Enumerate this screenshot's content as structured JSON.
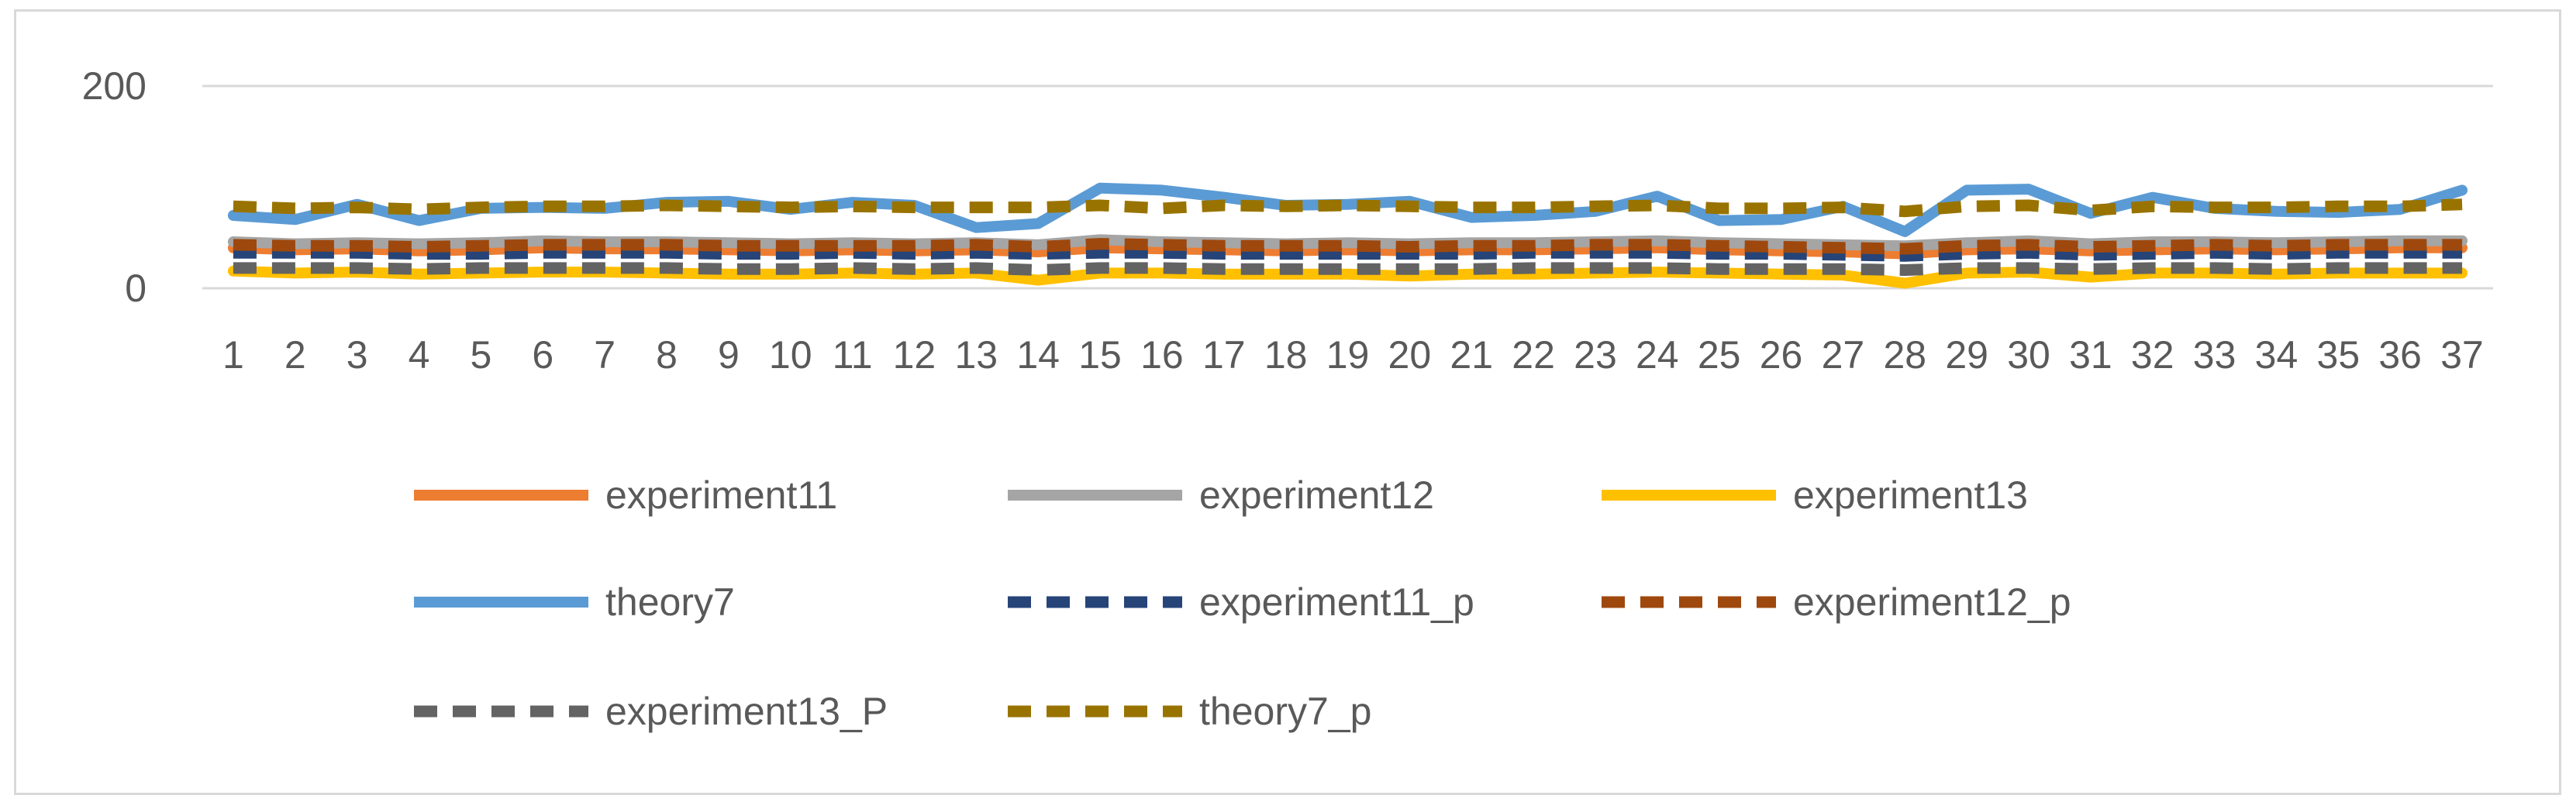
{
  "chart_data": {
    "type": "line",
    "title": "",
    "xlabel": "",
    "ylabel": "",
    "ylim": [
      0,
      200
    ],
    "yticks": [
      0,
      200
    ],
    "grid": true,
    "legend_position": "bottom",
    "categories": [
      "1",
      "2",
      "3",
      "4",
      "5",
      "6",
      "7",
      "8",
      "9",
      "10",
      "11",
      "12",
      "13",
      "14",
      "15",
      "16",
      "17",
      "18",
      "19",
      "20",
      "21",
      "22",
      "23",
      "24",
      "25",
      "26",
      "27",
      "28",
      "29",
      "30",
      "31",
      "32",
      "33",
      "34",
      "35",
      "36",
      "37"
    ],
    "series": [
      {
        "name": "experiment11",
        "color": "#ED7D31",
        "dash": "solid",
        "values": [
          40,
          38,
          39,
          37,
          38,
          40,
          39,
          39,
          38,
          37,
          38,
          37,
          38,
          36,
          40,
          39,
          38,
          37,
          38,
          37,
          38,
          38,
          39,
          40,
          38,
          37,
          36,
          34,
          38,
          39,
          37,
          38,
          39,
          38,
          39,
          40,
          40
        ]
      },
      {
        "name": "experiment12",
        "color": "#A5A5A5",
        "dash": "solid",
        "values": [
          46,
          44,
          45,
          44,
          45,
          47,
          46,
          46,
          45,
          44,
          45,
          44,
          45,
          43,
          48,
          46,
          45,
          44,
          45,
          44,
          45,
          45,
          46,
          47,
          45,
          44,
          43,
          42,
          45,
          47,
          44,
          46,
          46,
          45,
          46,
          47,
          47
        ]
      },
      {
        "name": "experiment13",
        "color": "#FFC000",
        "dash": "solid",
        "values": [
          17,
          15,
          16,
          14,
          15,
          16,
          16,
          15,
          14,
          14,
          15,
          14,
          15,
          8,
          15,
          15,
          14,
          14,
          14,
          12,
          14,
          14,
          15,
          16,
          15,
          14,
          13,
          5,
          15,
          16,
          11,
          15,
          15,
          14,
          15,
          15,
          15
        ]
      },
      {
        "name": "theory7",
        "color": "#5B9BD5",
        "dash": "solid",
        "values": [
          72,
          68,
          83,
          67,
          79,
          80,
          79,
          85,
          86,
          78,
          85,
          82,
          60,
          64,
          99,
          97,
          90,
          82,
          83,
          86,
          70,
          72,
          76,
          91,
          67,
          68,
          81,
          56,
          97,
          98,
          74,
          90,
          79,
          76,
          75,
          78,
          97
        ]
      },
      {
        "name": "experiment11_p",
        "color": "#264478",
        "dash": "dashed",
        "values": [
          35,
          35,
          35,
          34,
          34,
          35,
          35,
          35,
          34,
          34,
          35,
          34,
          35,
          34,
          35,
          35,
          34,
          34,
          34,
          34,
          34,
          35,
          35,
          35,
          34,
          34,
          33,
          32,
          34,
          35,
          33,
          34,
          35,
          34,
          35,
          35,
          35
        ]
      },
      {
        "name": "experiment12_p",
        "color": "#9E480E",
        "dash": "dashed",
        "values": [
          43,
          42,
          42,
          41,
          42,
          43,
          43,
          43,
          42,
          42,
          42,
          42,
          43,
          41,
          44,
          43,
          42,
          42,
          42,
          41,
          42,
          42,
          43,
          43,
          42,
          41,
          40,
          39,
          42,
          43,
          41,
          42,
          43,
          42,
          43,
          43,
          43
        ]
      },
      {
        "name": "experiment13_P",
        "color": "#636363",
        "dash": "dashed",
        "values": [
          20,
          20,
          20,
          19,
          20,
          20,
          20,
          20,
          19,
          19,
          20,
          19,
          20,
          18,
          20,
          20,
          19,
          19,
          19,
          19,
          19,
          20,
          20,
          20,
          19,
          19,
          19,
          18,
          20,
          20,
          19,
          20,
          20,
          19,
          20,
          20,
          20
        ]
      },
      {
        "name": "theory7_p",
        "color": "#997300",
        "dash": "dashed",
        "values": [
          81,
          79,
          80,
          78,
          80,
          81,
          81,
          82,
          81,
          80,
          81,
          80,
          80,
          80,
          82,
          79,
          82,
          81,
          82,
          81,
          80,
          80,
          81,
          82,
          79,
          79,
          80,
          76,
          81,
          82,
          77,
          81,
          80,
          80,
          81,
          81,
          83
        ]
      }
    ]
  }
}
